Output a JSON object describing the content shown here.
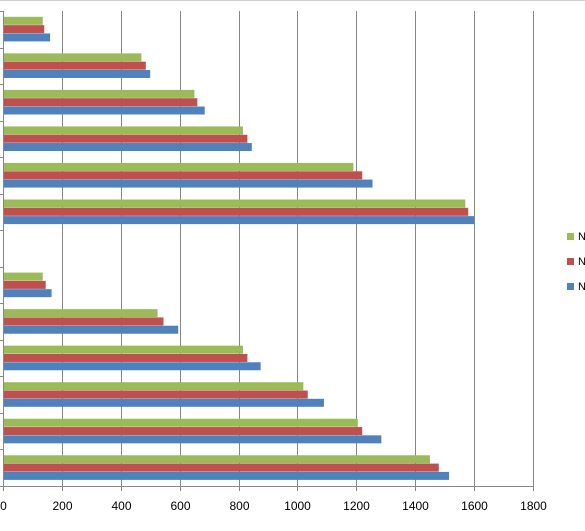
{
  "chart_data": {
    "type": "bar",
    "orientation": "horizontal",
    "xlim": [
      0,
      1800
    ],
    "x_ticks": [
      "0",
      "200",
      "400",
      "600",
      "800",
      "1000",
      "1200",
      "1400",
      "1600",
      "1800"
    ],
    "grid": "vertical",
    "legend_position": "right",
    "groups": [
      {
        "series": [
          {
            "legend_label": "N",
            "color": "#9bbb59",
            "values": [
              135,
              470,
              650,
              815,
              1190,
              1570
            ]
          },
          {
            "legend_label": "N",
            "color": "#c0504d",
            "values": [
              140,
              485,
              660,
              830,
              1220,
              1580
            ]
          },
          {
            "legend_label": "N",
            "color": "#4f81bd",
            "values": [
              160,
              500,
              685,
              845,
              1255,
              1600
            ]
          }
        ]
      },
      {
        "series": [
          {
            "legend_label": "N",
            "color": "#9bbb59",
            "values": [
              135,
              525,
              815,
              1020,
              1205,
              1450
            ]
          },
          {
            "legend_label": "N",
            "color": "#c0504d",
            "values": [
              145,
              545,
              830,
              1035,
              1220,
              1480
            ]
          },
          {
            "legend_label": "N",
            "color": "#4f81bd",
            "values": [
              165,
              595,
              875,
              1090,
              1285,
              1515
            ]
          }
        ]
      }
    ]
  }
}
